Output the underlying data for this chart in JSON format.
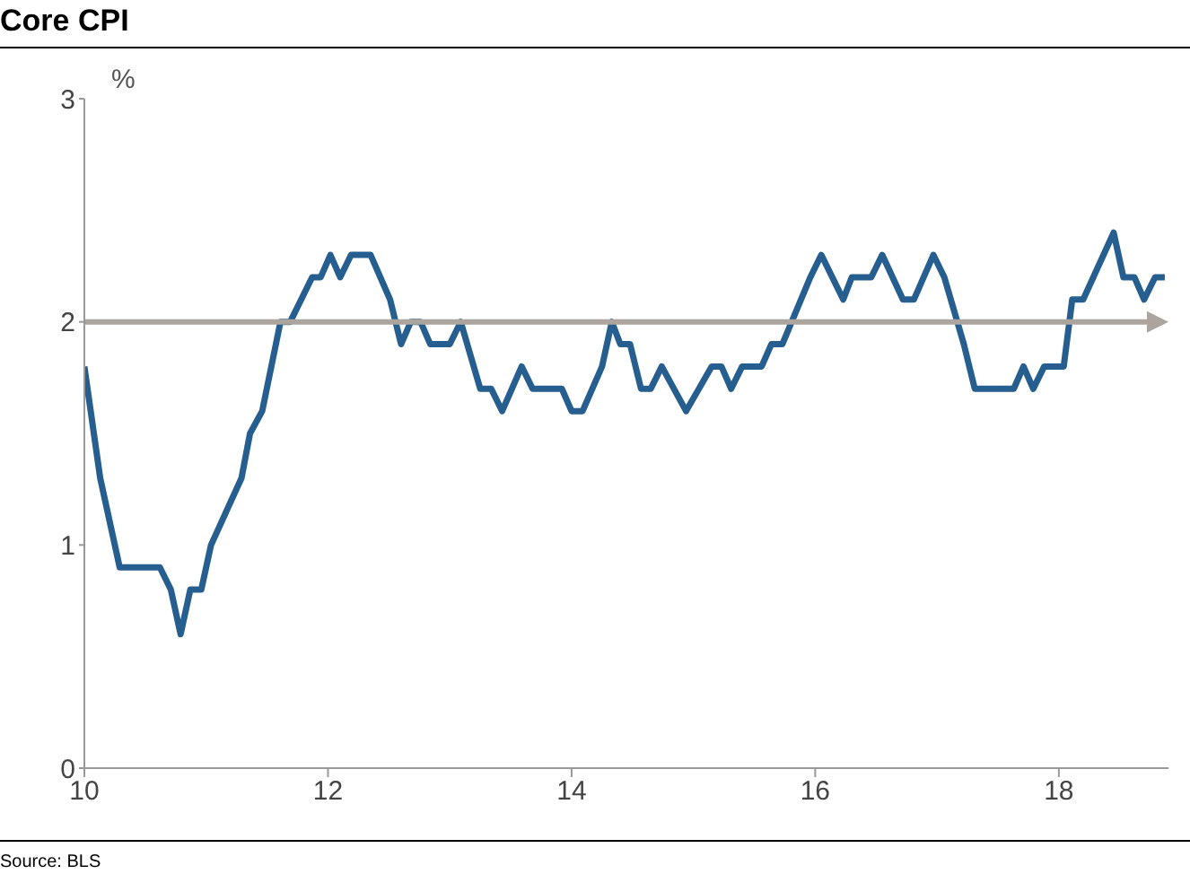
{
  "chart_data": {
    "type": "line",
    "title": "Core CPI",
    "ylabel": "%",
    "annotations": [
      "Source: BLS"
    ],
    "x": [
      10.0,
      10.13,
      10.29,
      10.62,
      10.71,
      10.79,
      10.87,
      10.96,
      11.04,
      11.29,
      11.36,
      11.46,
      11.61,
      11.69,
      11.87,
      11.94,
      12.02,
      12.1,
      12.19,
      12.35,
      12.51,
      12.6,
      12.68,
      12.76,
      12.84,
      13.0,
      13.09,
      13.25,
      13.34,
      13.43,
      13.59,
      13.68,
      13.92,
      14.0,
      14.09,
      14.25,
      14.33,
      14.4,
      14.48,
      14.57,
      14.65,
      14.74,
      14.94,
      15.15,
      15.23,
      15.31,
      15.4,
      15.56,
      15.64,
      15.73,
      15.96,
      16.05,
      16.23,
      16.3,
      16.46,
      16.55,
      16.72,
      16.81,
      16.97,
      17.06,
      17.22,
      17.31,
      17.63,
      17.71,
      17.79,
      17.88,
      18.04,
      18.11,
      18.2,
      18.45,
      18.53,
      18.62,
      18.7,
      18.79,
      18.87
    ],
    "series": [
      {
        "color": "#265f8f",
        "values": [
          1.8,
          1.3,
          0.9,
          0.9,
          0.8,
          0.6,
          0.8,
          0.8,
          1.0,
          1.3,
          1.5,
          1.6,
          2.0,
          2.0,
          2.2,
          2.2,
          2.3,
          2.2,
          2.3,
          2.3,
          2.1,
          1.9,
          2.0,
          2.0,
          1.9,
          1.9,
          2.0,
          1.7,
          1.7,
          1.6,
          1.8,
          1.7,
          1.7,
          1.6,
          1.6,
          1.8,
          2.0,
          1.9,
          1.9,
          1.7,
          1.7,
          1.8,
          1.6,
          1.8,
          1.8,
          1.7,
          1.8,
          1.8,
          1.9,
          1.9,
          2.2,
          2.3,
          2.1,
          2.2,
          2.2,
          2.3,
          2.1,
          2.1,
          2.3,
          2.2,
          1.9,
          1.7,
          1.7,
          1.8,
          1.7,
          1.8,
          1.8,
          2.1,
          2.1,
          2.4,
          2.2,
          2.2,
          2.1,
          2.2,
          2.2
        ]
      }
    ],
    "xlim": [
      10,
      18.9
    ],
    "xticks": [
      10,
      12,
      14,
      16,
      18
    ],
    "ylim": [
      0,
      3
    ],
    "yticks": [
      0,
      1,
      2,
      3
    ],
    "ref_lines": [
      {
        "axis": "y",
        "value": 2,
        "color": "#aba59e"
      }
    ],
    "grid": false,
    "legend": false,
    "marker": "none",
    "line_style": "solid"
  }
}
